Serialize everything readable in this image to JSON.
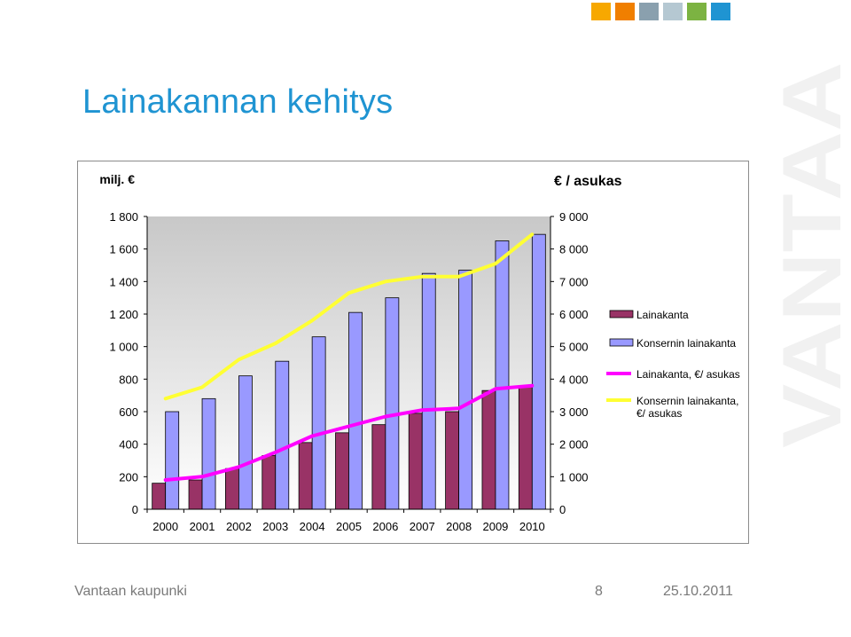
{
  "slide": {
    "title": "Lainakannan kehitys",
    "footer_org": "Vantaan kaupunki",
    "footer_page": "8",
    "footer_date": "25.10.2011",
    "watermark_text": "VANTAA",
    "corner_colors": [
      "#f7a800",
      "#f07f00",
      "#8aa0ae",
      "#b5c8d2",
      "#7cb342",
      "#1f94d2"
    ]
  },
  "chart_data": {
    "type": "bar",
    "categories": [
      "2000",
      "2001",
      "2002",
      "2003",
      "2004",
      "2005",
      "2006",
      "2007",
      "2008",
      "2009",
      "2010"
    ],
    "ylabel_left": "milj. €",
    "ylabel_right": "€ / asukas",
    "ylim_left": [
      0,
      1800
    ],
    "ylim_right": [
      0,
      9000
    ],
    "yticks_left": [
      "0",
      "200",
      "400",
      "600",
      "800",
      "1 000",
      "1 200",
      "1 400",
      "1 600",
      "1 800"
    ],
    "yticks_right": [
      "0",
      "1 000",
      "2 000",
      "3 000",
      "4 000",
      "5 000",
      "6 000",
      "7 000",
      "8 000",
      "9 000"
    ],
    "legend_position": "right",
    "series": [
      {
        "name": "Lainakanta",
        "kind": "bar",
        "axis": "left",
        "color": "#993366",
        "values": [
          160,
          180,
          250,
          330,
          410,
          470,
          520,
          590,
          600,
          730,
          760
        ]
      },
      {
        "name": "Konsernin lainakanta",
        "kind": "bar",
        "axis": "left",
        "color": "#9999ff",
        "values": [
          600,
          680,
          820,
          910,
          1060,
          1210,
          1300,
          1450,
          1470,
          1650,
          1690
        ]
      },
      {
        "name": "Lainakanta, €/ asukas",
        "kind": "line",
        "axis": "right",
        "color": "#ff00ff",
        "values": [
          900,
          1000,
          1300,
          1750,
          2250,
          2550,
          2850,
          3050,
          3100,
          3700,
          3800
        ]
      },
      {
        "name": "Konsernin lainakanta, €/ asukas",
        "kind": "line",
        "axis": "right",
        "color": "#ffff33",
        "values": [
          3400,
          3750,
          4600,
          5100,
          5800,
          6650,
          7000,
          7150,
          7150,
          7550,
          8450
        ]
      }
    ]
  }
}
